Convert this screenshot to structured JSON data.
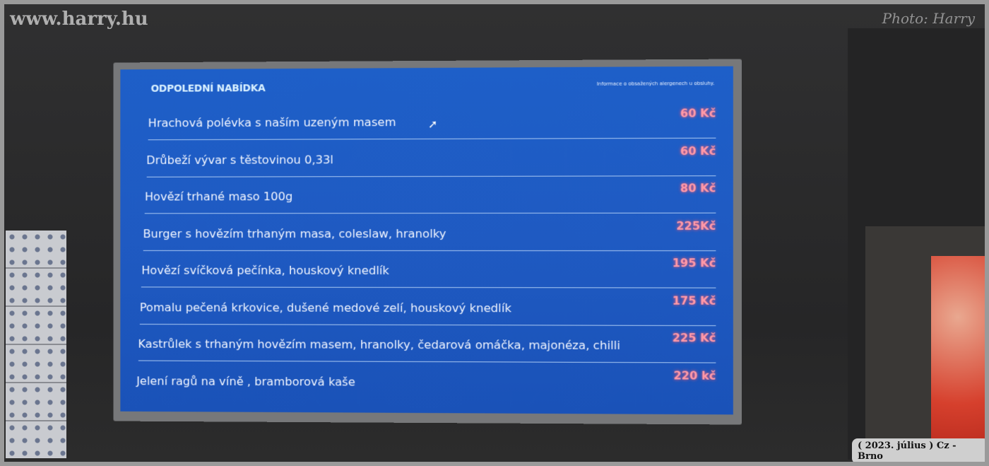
{
  "watermark": "www.harry.hu",
  "photo_credit": "Photo: Harry",
  "caption": "( 2023. július ) Cz - Brno",
  "menu": {
    "title": "ODPOLEDNÍ NABÍDKA",
    "info": "Informace o obsažených alergenech u obsluhy.",
    "items": [
      {
        "name": "Hrachová polévka s naším uzeným masem",
        "price": "60 Kč"
      },
      {
        "name": "Drůbeží vývar s těstovinou 0,33l",
        "price": "60 Kč"
      },
      {
        "name": "Hovězí trhané maso 100g",
        "price": "80 Kč"
      },
      {
        "name": "Burger s hovězím trhaným masa, coleslaw, hranolky",
        "price": "225Kč"
      },
      {
        "name": "Hovězí svíčková pečínka, houskový knedlík",
        "price": "195 Kč"
      },
      {
        "name": "Pomalu pečená krkovice, dušené medové zelí, houskový knedlík",
        "price": "175 Kč"
      },
      {
        "name": "Kastrůlek s trhaným hovězím masem, hranolky, čedarová omáčka, majonéza, chilli",
        "price": "225 Kč"
      },
      {
        "name": "Jelení ragů na víně , bramborová kaše",
        "price": "220 kč"
      }
    ]
  },
  "colors": {
    "screen": "#1e5fc8",
    "price": "#ff9aa8"
  }
}
